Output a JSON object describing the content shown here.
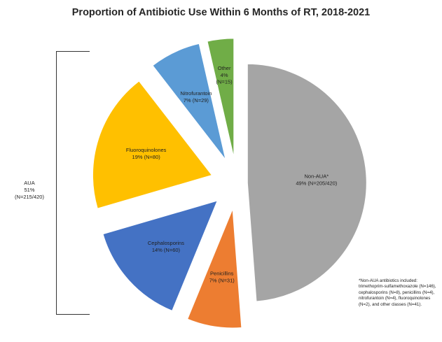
{
  "chart_data": {
    "type": "pie",
    "title": "Proportion of Antibiotic Use Within 6 Months of RT, 2018-2021",
    "slices": [
      {
        "label": "Non-AUA*",
        "value_text": "49% (N=205/420)",
        "value": 205,
        "percent": 49,
        "color": "#a5a5a5",
        "explode": 0.09,
        "label_pos": "inside"
      },
      {
        "label": "Penicillins",
        "value_text": "7% (N=31)",
        "value": 31,
        "percent": 7,
        "color": "#ed7d31",
        "explode": 0.22,
        "label_pos": "inside"
      },
      {
        "label": "Cephalosporins",
        "value_text": "14% (N=60)",
        "value": 60,
        "percent": 14,
        "color": "#4472c4",
        "explode": 0.22,
        "label_pos": "inside"
      },
      {
        "label": "Fluoroquinolones",
        "value_text": "19% (N=80)",
        "value": 80,
        "percent": 19,
        "color": "#ffc000",
        "explode": 0.22,
        "label_pos": "inside"
      },
      {
        "label": "Nitrofurantoin",
        "value_text": "7% (N=29)",
        "value": 29,
        "percent": 7,
        "color": "#5b9bd5",
        "explode": 0.22,
        "label_pos": "inside"
      },
      {
        "label": "Other",
        "value_text": "4% (N=15)",
        "value": 15,
        "percent": 4,
        "color": "#70ad47",
        "explode": 0.22,
        "label_pos": "inside"
      }
    ],
    "start_angle_deg": 0,
    "direction": "clockwise",
    "group_annotation": {
      "lines": [
        "AUA",
        "51%",
        "(N=215/420)"
      ]
    },
    "footnote": "*Non-AUA antibiotics included: trimethoprim-sulfamethoxazole (N=146), cephalosporins (N=8), penicillins (N=4), nitrofurantoin (N=4), fluoroquinolones (N=2), and other classes (N=41)."
  }
}
